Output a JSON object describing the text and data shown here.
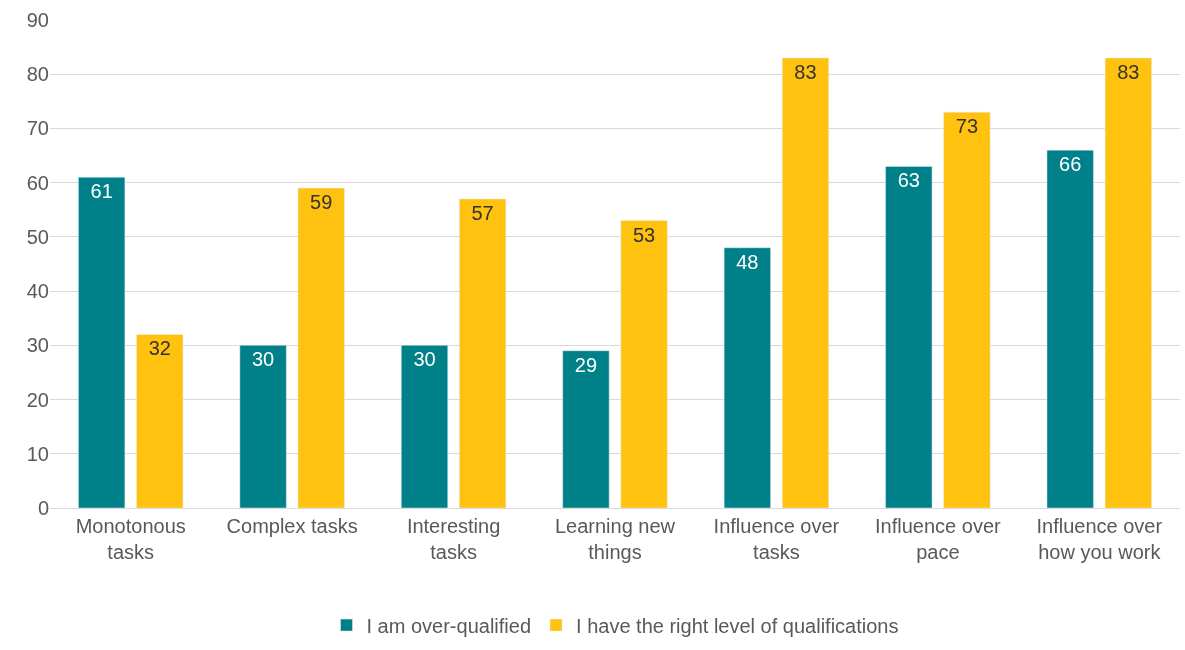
{
  "chart_data": {
    "type": "bar",
    "categories": [
      "Monotonous tasks",
      "Complex tasks",
      "Interesting tasks",
      "Learning new things",
      "Influence over tasks",
      "Influence over pace",
      "Influence over how you work"
    ],
    "series": [
      {
        "name": "I am over-qualified",
        "color": "#00818a",
        "values": [
          61,
          30,
          30,
          29,
          48,
          63,
          66
        ]
      },
      {
        "name": "I have the right level of qualifications",
        "color": "#ffc20e",
        "values": [
          32,
          59,
          57,
          53,
          83,
          73,
          83
        ]
      }
    ],
    "ylim": [
      0,
      90
    ],
    "yticks": [
      0,
      10,
      20,
      30,
      40,
      50,
      60,
      70,
      80,
      90
    ],
    "grid": "y",
    "legend": "bottom",
    "data_labels": true
  }
}
